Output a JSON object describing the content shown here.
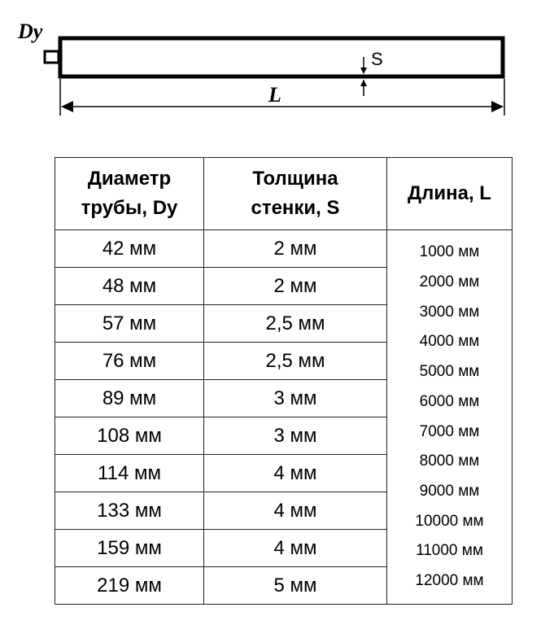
{
  "diagram": {
    "label_diameter": "Dy",
    "label_thickness": "S",
    "label_length": "L"
  },
  "table": {
    "headers": {
      "diameter": [
        "Диаметр",
        "трубы, Dy"
      ],
      "thickness": [
        "Толщина",
        "стенки, S"
      ],
      "length": "Длина, L"
    },
    "rows": [
      {
        "diameter": "42 мм",
        "thickness": "2 мм"
      },
      {
        "diameter": "48 мм",
        "thickness": "2 мм"
      },
      {
        "diameter": "57 мм",
        "thickness": "2,5 мм"
      },
      {
        "diameter": "76 мм",
        "thickness": "2,5 мм"
      },
      {
        "diameter": "89 мм",
        "thickness": "3 мм"
      },
      {
        "diameter": "108 мм",
        "thickness": "3 мм"
      },
      {
        "diameter": "114 мм",
        "thickness": "4 мм"
      },
      {
        "diameter": "133 мм",
        "thickness": "4 мм"
      },
      {
        "diameter": "159 мм",
        "thickness": "4 мм"
      },
      {
        "diameter": "219 мм",
        "thickness": "5 мм"
      }
    ],
    "lengths": [
      "1000 мм",
      "2000 мм",
      "3000 мм",
      "4000 мм",
      "5000 мм",
      "6000 мм",
      "7000 мм",
      "8000 мм",
      "9000 мм",
      "10000 мм",
      "11000 мм",
      "12000 мм"
    ]
  }
}
